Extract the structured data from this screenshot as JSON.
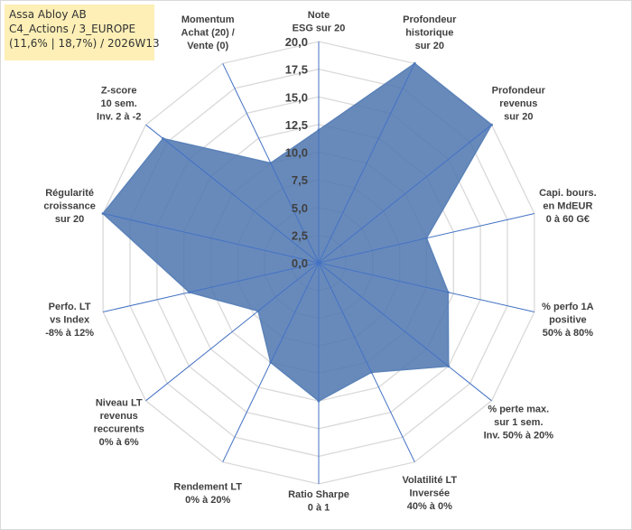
{
  "header": {
    "line1": "Assa Abloy AB",
    "line2": "C4_Actions / 3_EUROPE",
    "line3": "(11,6% | 18,7%) / 2026W13"
  },
  "chart_data": {
    "type": "radar",
    "title": "Assa Abloy AB",
    "rmin": 0,
    "rmax": 20,
    "tick_step": 2.5,
    "tick_labels": [
      "0,0",
      "2,5",
      "5,0",
      "7,5",
      "10,0",
      "12,5",
      "15,0",
      "17,5",
      "20,0"
    ],
    "series_color": "#5b82b8",
    "series_fill": "#4e76af",
    "categories": [
      [
        "Note",
        "ESG sur 20"
      ],
      [
        "Profondeur",
        "historique",
        "sur 20"
      ],
      [
        "Profondeur",
        "revenus",
        "sur 20"
      ],
      [
        "Capi. bours.",
        "en MdEUR",
        "0 à 60 G€"
      ],
      [
        "% perfo 1A",
        "positive",
        "50% à 80%"
      ],
      [
        "% perte max.",
        "sur 1 sem.",
        "Inv. 50% à 20%"
      ],
      [
        "Volatilité LT",
        "Inversée",
        "40% à 0%"
      ],
      [
        "Ratio Sharpe",
        "0 à 1"
      ],
      [
        "Rendement LT",
        "0% à 20%"
      ],
      [
        "Niveau LT",
        "revenus",
        "reccurents",
        "0% à 6%"
      ],
      [
        "Perfo. LT",
        "vs Index",
        "-8% à 12%"
      ],
      [
        "Régularité",
        "croissance",
        "sur 20"
      ],
      [
        "Z-score",
        "10 sem.",
        "Inv. 2 à -2"
      ],
      [
        "Momentum",
        "Achat (20) /",
        "Vente (0)"
      ]
    ],
    "values": [
      12.0,
      20.0,
      20.0,
      10.0,
      12.0,
      15.0,
      11.0,
      12.5,
      10.0,
      7.0,
      12.0,
      20.0,
      18.0,
      10.0
    ]
  }
}
